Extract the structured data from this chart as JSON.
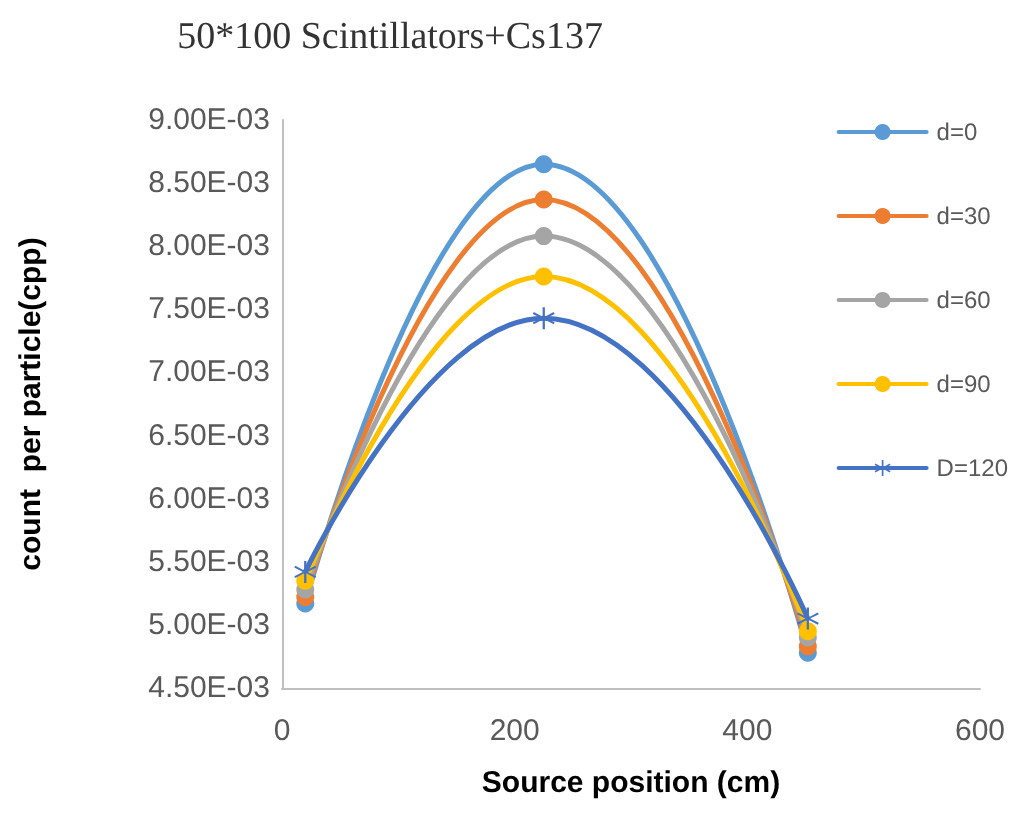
{
  "chart_data": {
    "type": "line",
    "title": "50*100 Scintillators+Cs137",
    "xlabel": "Source position (cm)",
    "ylabel": "count  per particle(cpp)",
    "x": [
      20,
      225,
      452
    ],
    "series": [
      {
        "name": "d=0",
        "color": "#5b9bd5",
        "marker": "circle",
        "values": [
          0.00517,
          0.00865,
          0.00478
        ]
      },
      {
        "name": "d=30",
        "color": "#ed7d31",
        "marker": "circle",
        "values": [
          0.00522,
          0.00837,
          0.00483
        ]
      },
      {
        "name": "d=60",
        "color": "#a5a5a5",
        "marker": "circle",
        "values": [
          0.00528,
          0.00808,
          0.0049
        ]
      },
      {
        "name": "d=90",
        "color": "#ffc000",
        "marker": "circle",
        "values": [
          0.00535,
          0.00776,
          0.00495
        ]
      },
      {
        "name": "D=120",
        "color": "#4472c4",
        "marker": "cross",
        "values": [
          0.00542,
          0.00743,
          0.00505
        ]
      }
    ],
    "xlim": [
      0,
      600
    ],
    "xticks": [
      0,
      200,
      400,
      600
    ],
    "ylim": [
      0.0045,
      0.009
    ],
    "yticks": [
      {
        "value": 0.0045,
        "label": "4.50E-03"
      },
      {
        "value": 0.005,
        "label": "5.00E-03"
      },
      {
        "value": 0.0055,
        "label": "5.50E-03"
      },
      {
        "value": 0.006,
        "label": "6.00E-03"
      },
      {
        "value": 0.0065,
        "label": "6.50E-03"
      },
      {
        "value": 0.007,
        "label": "7.00E-03"
      },
      {
        "value": 0.0075,
        "label": "7.50E-03"
      },
      {
        "value": 0.008,
        "label": "8.00E-03"
      },
      {
        "value": 0.0085,
        "label": "8.50E-03"
      },
      {
        "value": 0.009,
        "label": "9.00E-03"
      }
    ],
    "grid": false,
    "legend": "right",
    "line_style": "solid"
  }
}
